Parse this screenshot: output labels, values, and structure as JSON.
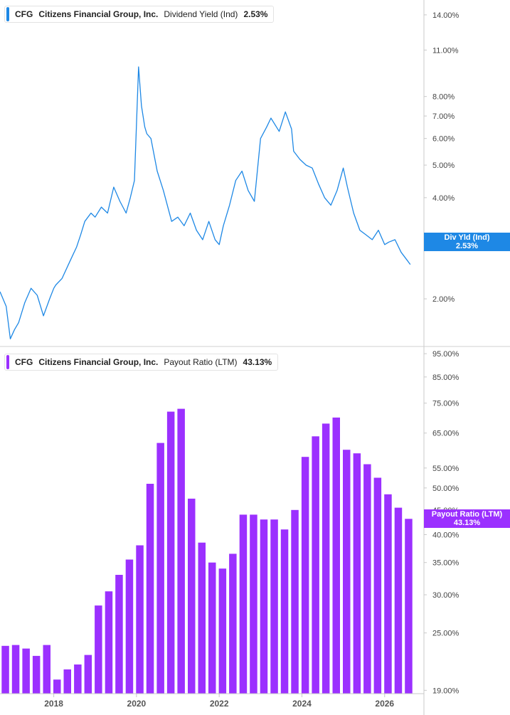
{
  "colors": {
    "yield_line": "#1e88e5",
    "payout_bar": "#9b30ff",
    "axis": "#c8c8c8",
    "divider": "#d0d0d0",
    "text": "#444444"
  },
  "legends": [
    {
      "ticker": "CFG",
      "company": "Citizens Financial Group, Inc.",
      "metric": "Dividend Yield (Ind)",
      "value": "2.53%"
    },
    {
      "ticker": "CFG",
      "company": "Citizens Financial Group, Inc.",
      "metric": "Payout Ratio (LTM)",
      "value": "43.13%"
    }
  ],
  "tags": [
    {
      "label": "Div Yld (Ind)",
      "value": "2.53%"
    },
    {
      "label": "Payout Ratio (LTM)",
      "value": "43.13%"
    }
  ],
  "chart_data": [
    {
      "type": "line",
      "title": "Dividend Yield (Ind)",
      "scale": "log",
      "ylim": [
        1.45,
        15.5
      ],
      "xlim": [
        2016.7,
        2026.95
      ],
      "ticks": [
        "14.00%",
        "11.00%",
        "8.00%",
        "7.00%",
        "6.00%",
        "5.00%",
        "4.00%",
        "3.00%",
        "2.00%"
      ],
      "tick_values": [
        14,
        11,
        8,
        7,
        6,
        5,
        4,
        3,
        2
      ],
      "series": [
        {
          "name": "Dividend Yield (Ind)",
          "x": [
            2016.7,
            2016.85,
            2016.95,
            2017.05,
            2017.15,
            2017.3,
            2017.45,
            2017.6,
            2017.75,
            2017.9,
            2018.0,
            2018.05,
            2018.2,
            2018.4,
            2018.55,
            2018.65,
            2018.75,
            2018.9,
            2019.0,
            2019.15,
            2019.3,
            2019.45,
            2019.6,
            2019.75,
            2019.85,
            2019.95,
            2020.05,
            2020.12,
            2020.2,
            2020.25,
            2020.35,
            2020.5,
            2020.65,
            2020.85,
            2021.0,
            2021.15,
            2021.3,
            2021.45,
            2021.6,
            2021.75,
            2021.9,
            2022.0,
            2022.1,
            2022.25,
            2022.4,
            2022.55,
            2022.7,
            2022.85,
            2023.0,
            2023.15,
            2023.25,
            2023.45,
            2023.6,
            2023.75,
            2023.8,
            2023.95,
            2024.1,
            2024.25,
            2024.4,
            2024.55,
            2024.7,
            2024.85,
            2025.0,
            2025.1,
            2025.25,
            2025.4,
            2025.55,
            2025.7,
            2025.85,
            2026.0,
            2026.1,
            2026.25,
            2026.4,
            2026.55,
            2026.62
          ],
          "y": [
            2.1,
            1.9,
            1.52,
            1.62,
            1.7,
            1.95,
            2.15,
            2.05,
            1.78,
            2.0,
            2.15,
            2.2,
            2.3,
            2.6,
            2.85,
            3.1,
            3.4,
            3.6,
            3.5,
            3.75,
            3.6,
            4.3,
            3.9,
            3.6,
            4.0,
            4.5,
            9.8,
            7.5,
            6.5,
            6.2,
            6.0,
            4.8,
            4.2,
            3.4,
            3.5,
            3.3,
            3.6,
            3.2,
            3.0,
            3.4,
            3.0,
            2.9,
            3.3,
            3.8,
            4.5,
            4.8,
            4.2,
            3.9,
            6.0,
            6.5,
            6.9,
            6.3,
            7.2,
            6.4,
            5.5,
            5.2,
            5.0,
            4.9,
            4.4,
            4.0,
            3.8,
            4.2,
            4.9,
            4.3,
            3.6,
            3.2,
            3.1,
            3.0,
            3.2,
            2.9,
            2.95,
            3.0,
            2.75,
            2.6,
            2.53
          ]
        }
      ]
    },
    {
      "type": "bar",
      "title": "Payout Ratio (LTM)",
      "scale": "log",
      "ylim": [
        18.7,
        98
      ],
      "xlim": [
        2016.7,
        2026.95
      ],
      "ticks": [
        "95.00%",
        "85.00%",
        "75.00%",
        "65.00%",
        "55.00%",
        "50.00%",
        "45.00%",
        "40.00%",
        "35.00%",
        "30.00%",
        "25.00%",
        "19.00%"
      ],
      "tick_values": [
        95,
        85,
        75,
        65,
        55,
        50,
        45,
        40,
        35,
        30,
        25,
        19
      ],
      "xlabel_ticks": [
        "2018",
        "2020",
        "2022",
        "2024",
        "2026"
      ],
      "xlabel_tick_values": [
        2018,
        2020,
        2022,
        2024,
        2026
      ],
      "series": [
        {
          "name": "Payout Ratio (LTM)",
          "x": [
            2016.83,
            2017.08,
            2017.33,
            2017.58,
            2017.83,
            2018.08,
            2018.33,
            2018.58,
            2018.83,
            2019.08,
            2019.33,
            2019.58,
            2019.83,
            2020.08,
            2020.33,
            2020.58,
            2020.83,
            2021.08,
            2021.33,
            2021.58,
            2021.83,
            2022.08,
            2022.33,
            2022.58,
            2022.83,
            2023.08,
            2023.33,
            2023.58,
            2023.83,
            2024.08,
            2024.33,
            2024.58,
            2024.83,
            2025.08,
            2025.33,
            2025.58,
            2025.83,
            2026.08,
            2026.33,
            2026.58
          ],
          "values": [
            23.5,
            23.6,
            23.2,
            22.4,
            23.6,
            20.0,
            21.0,
            21.5,
            22.5,
            28.5,
            30.5,
            33.0,
            35.5,
            38.0,
            51.0,
            62.0,
            72.0,
            73.0,
            47.5,
            38.5,
            35.0,
            34.0,
            36.5,
            44.0,
            44.0,
            43.0,
            43.0,
            41.0,
            45.0,
            58.0,
            64.0,
            68.0,
            70.0,
            60.0,
            59.0,
            56.0,
            52.5,
            48.5,
            45.5,
            43.13
          ]
        }
      ]
    }
  ]
}
